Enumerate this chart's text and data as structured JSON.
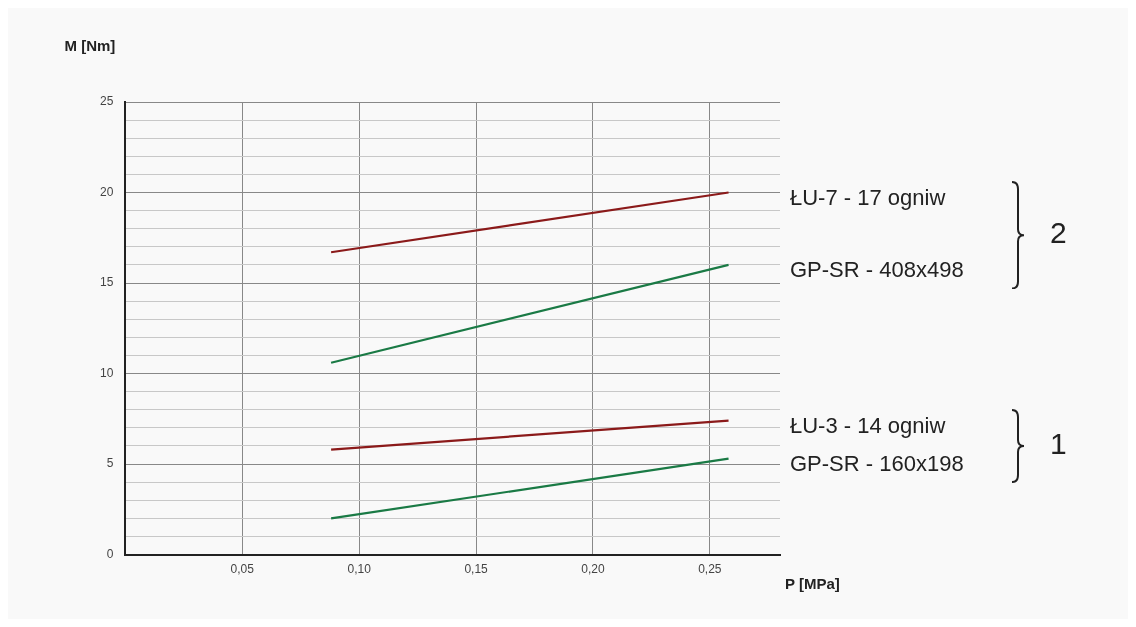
{
  "chart_data": {
    "type": "line",
    "xlabel": "P [MPa]",
    "ylabel": "M [Nm]",
    "xlim": [
      0,
      0.28
    ],
    "xticks": [
      {
        "value": 0.05,
        "label": "0,05"
      },
      {
        "value": 0.1,
        "label": "0,10"
      },
      {
        "value": 0.15,
        "label": "0,15"
      },
      {
        "value": 0.2,
        "label": "0,20"
      },
      {
        "value": 0.25,
        "label": "0,25"
      }
    ],
    "ylim": [
      0,
      25
    ],
    "yticks": [
      0,
      {
        "value": 1,
        "label": null
      },
      {
        "value": 2,
        "label": null
      },
      {
        "value": 3,
        "label": null
      },
      {
        "value": 4,
        "label": null
      },
      5,
      {
        "value": 6,
        "label": null
      },
      {
        "value": 7,
        "label": null
      },
      {
        "value": 8,
        "label": null
      },
      {
        "value": 9,
        "label": null
      },
      10,
      {
        "value": 11,
        "label": null
      },
      {
        "value": 12,
        "label": null
      },
      {
        "value": 13,
        "label": null
      },
      {
        "value": 14,
        "label": null
      },
      15,
      {
        "value": 16,
        "label": null
      },
      {
        "value": 17,
        "label": null
      },
      {
        "value": 18,
        "label": null
      },
      {
        "value": 19,
        "label": null
      },
      20,
      {
        "value": 21,
        "label": null
      },
      {
        "value": 22,
        "label": null
      },
      {
        "value": 23,
        "label": null
      },
      {
        "value": 24,
        "label": null
      },
      25
    ],
    "grid": true,
    "legend": false,
    "marker": "none",
    "line_style": "solid",
    "x": [
      0.088,
      0.258
    ],
    "series": [
      {
        "name": "ŁU-7 - 17 ogniw",
        "color": "#8b1a1a",
        "values": [
          16.7,
          20.0
        ]
      },
      {
        "name": "GP-SR - 408x498",
        "color": "#1a7a45",
        "values": [
          10.6,
          16.0
        ]
      },
      {
        "name": "ŁU-3 - 14 ogniw",
        "color": "#8b1a1a",
        "values": [
          5.8,
          7.4
        ]
      },
      {
        "name": "GP-SR - 160x198",
        "color": "#1a7a45",
        "values": [
          2.0,
          5.3
        ]
      }
    ],
    "annotations": [
      "2",
      "1"
    ]
  }
}
